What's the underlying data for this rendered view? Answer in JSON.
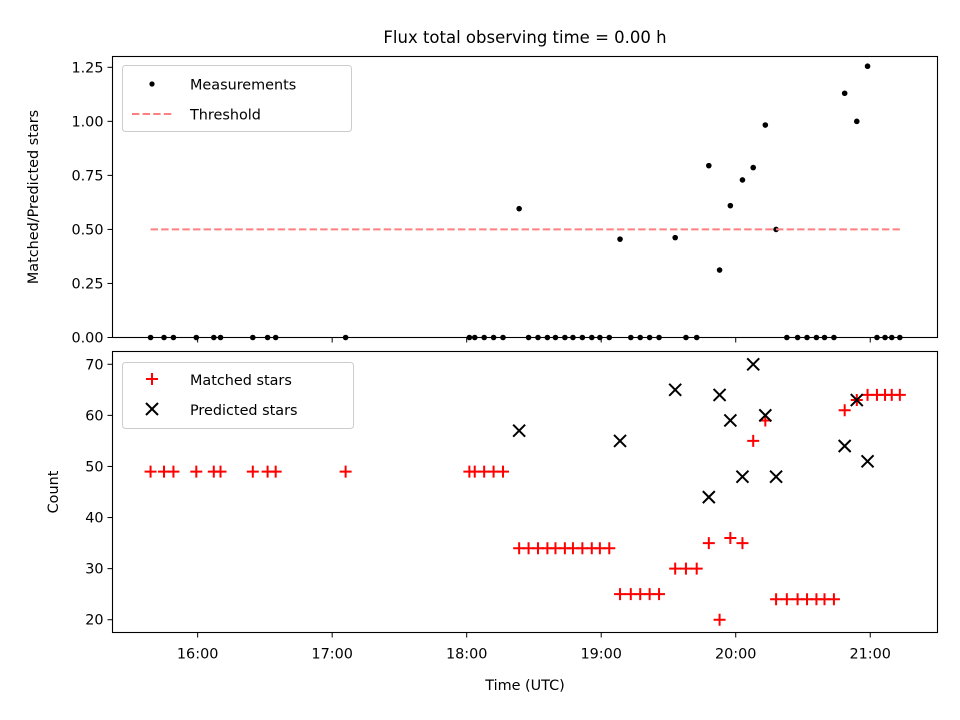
{
  "chart_data": [
    {
      "type": "scatter",
      "title": "Flux total observing time = 0.00 h",
      "xlabel": "",
      "ylabel": "Matched/Predicted stars",
      "xlim_hours": [
        15.367,
        21.5
      ],
      "ylim": [
        0,
        1.3
      ],
      "yticks": [
        0.0,
        0.25,
        0.5,
        0.75,
        1.0,
        1.25
      ],
      "ytick_labels": [
        "0.00",
        "0.25",
        "0.50",
        "0.75",
        "1.00",
        "1.25"
      ],
      "xticks_hours": [
        16,
        17,
        18,
        19,
        20,
        21
      ],
      "legend_position": "top-left",
      "series": [
        {
          "name": "Measurements",
          "marker": "dot",
          "color": "#000000",
          "x_hours": [
            15.65,
            15.75,
            15.82,
            15.99,
            16.12,
            16.17,
            16.41,
            16.52,
            16.58,
            17.1,
            18.02,
            18.06,
            18.13,
            18.2,
            18.27,
            18.39,
            18.46,
            18.53,
            18.6,
            18.66,
            18.73,
            18.79,
            18.86,
            18.93,
            18.99,
            19.06,
            19.14,
            19.22,
            19.29,
            19.36,
            19.43,
            19.55,
            19.63,
            19.71,
            19.8,
            19.88,
            19.96,
            20.05,
            20.13,
            20.22,
            20.3,
            20.38,
            20.46,
            20.53,
            20.6,
            20.66,
            20.73,
            20.81,
            20.9,
            20.98,
            21.05,
            21.11,
            21.16,
            21.22
          ],
          "values": [
            0,
            0,
            0,
            0,
            0,
            0,
            0,
            0,
            0,
            0,
            0,
            0,
            0,
            0,
            0,
            0.596,
            0,
            0,
            0,
            0,
            0,
            0,
            0,
            0,
            0,
            0,
            0.455,
            0,
            0,
            0,
            0,
            0.462,
            0,
            0,
            0.795,
            0.312,
            0.61,
            0.729,
            0.786,
            0.983,
            0.5,
            0,
            0,
            0,
            0,
            0,
            0,
            1.13,
            1.0,
            1.255,
            0,
            0,
            0,
            0
          ]
        },
        {
          "name": "Threshold",
          "style": "dashed",
          "color": "#ff8080",
          "x_hours": [
            15.65,
            21.22
          ],
          "values": [
            0.5,
            0.5
          ]
        }
      ]
    },
    {
      "type": "scatter",
      "title": "",
      "xlabel": "Time (UTC)",
      "ylabel": "Count",
      "xlim_hours": [
        15.367,
        21.5
      ],
      "ylim": [
        17.5,
        72.5
      ],
      "yticks": [
        20,
        30,
        40,
        50,
        60,
        70
      ],
      "ytick_labels": [
        "20",
        "30",
        "40",
        "50",
        "60",
        "70"
      ],
      "xticks_hours": [
        16,
        17,
        18,
        19,
        20,
        21
      ],
      "xtick_labels": [
        "16:00",
        "17:00",
        "18:00",
        "19:00",
        "20:00",
        "21:00"
      ],
      "legend_position": "top-left",
      "series": [
        {
          "name": "Matched stars",
          "marker": "plus",
          "color": "#ff0000",
          "x_hours": [
            15.65,
            15.75,
            15.82,
            15.99,
            16.12,
            16.17,
            16.41,
            16.52,
            16.58,
            17.1,
            18.02,
            18.06,
            18.13,
            18.2,
            18.27,
            18.39,
            18.46,
            18.53,
            18.6,
            18.66,
            18.73,
            18.79,
            18.86,
            18.93,
            18.99,
            19.06,
            19.14,
            19.22,
            19.29,
            19.36,
            19.43,
            19.55,
            19.63,
            19.71,
            19.8,
            19.88,
            19.96,
            20.05,
            20.13,
            20.22,
            20.3,
            20.38,
            20.46,
            20.53,
            20.6,
            20.66,
            20.73,
            20.81,
            20.9,
            20.98,
            21.05,
            21.11,
            21.16,
            21.22
          ],
          "values": [
            49,
            49,
            49,
            49,
            49,
            49,
            49,
            49,
            49,
            49,
            49,
            49,
            49,
            49,
            49,
            34,
            34,
            34,
            34,
            34,
            34,
            34,
            34,
            34,
            34,
            34,
            25,
            25,
            25,
            25,
            25,
            30,
            30,
            30,
            35,
            20,
            36,
            35,
            55,
            59,
            24,
            24,
            24,
            24,
            24,
            24,
            24,
            61,
            63,
            64,
            64,
            64,
            64,
            64
          ]
        },
        {
          "name": "Predicted stars",
          "marker": "x",
          "color": "#000000",
          "x_hours": [
            18.39,
            19.14,
            19.55,
            19.8,
            19.88,
            19.96,
            20.05,
            20.13,
            20.22,
            20.3,
            20.81,
            20.9,
            20.98
          ],
          "values": [
            57,
            55,
            65,
            44,
            64,
            59,
            48,
            70,
            60,
            48,
            54,
            63,
            51
          ]
        }
      ]
    }
  ]
}
